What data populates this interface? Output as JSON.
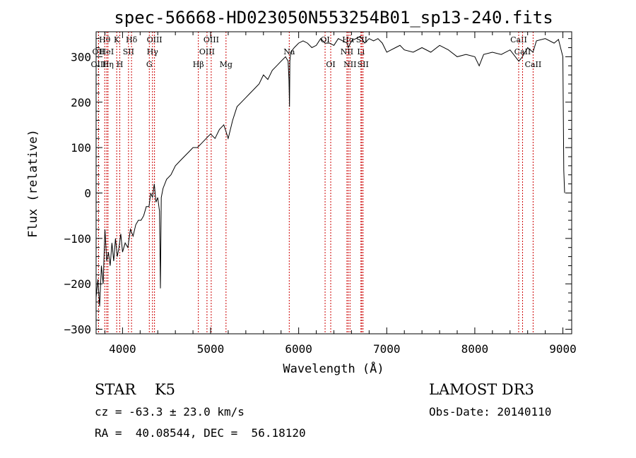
{
  "chart_data": {
    "type": "line",
    "title": "spec-56668-HD023050N553254B01_sp13-240.fits",
    "xlabel": "Wavelength (Å)",
    "ylabel": "Flux (relative)",
    "xlim": [
      3700,
      9100
    ],
    "ylim": [
      -310,
      355
    ],
    "xticks": [
      4000,
      5000,
      6000,
      7000,
      8000,
      9000
    ],
    "yticks": [
      -300,
      -200,
      -100,
      0,
      100,
      200,
      300
    ],
    "series": [
      {
        "name": "spectrum",
        "x": [
          3700,
          3720,
          3740,
          3760,
          3780,
          3800,
          3820,
          3840,
          3860,
          3880,
          3900,
          3920,
          3940,
          3960,
          3980,
          4000,
          4030,
          4060,
          4090,
          4120,
          4150,
          4180,
          4210,
          4240,
          4270,
          4300,
          4320,
          4340,
          4360,
          4380,
          4400,
          4420,
          4430,
          4440,
          4460,
          4500,
          4550,
          4600,
          4650,
          4700,
          4750,
          4800,
          4850,
          4900,
          4950,
          5000,
          5050,
          5100,
          5150,
          5200,
          5250,
          5300,
          5350,
          5400,
          5450,
          5500,
          5550,
          5600,
          5650,
          5700,
          5750,
          5800,
          5850,
          5880,
          5890,
          5896,
          5900,
          5910,
          5950,
          6000,
          6050,
          6100,
          6150,
          6200,
          6250,
          6300,
          6350,
          6400,
          6450,
          6500,
          6550,
          6563,
          6600,
          6650,
          6700,
          6750,
          6800,
          6850,
          6900,
          6950,
          7000,
          7050,
          7100,
          7150,
          7200,
          7300,
          7400,
          7500,
          7600,
          7700,
          7800,
          7900,
          8000,
          8050,
          8100,
          8200,
          8300,
          8400,
          8500,
          8540,
          8600,
          8660,
          8700,
          8800,
          8900,
          8950,
          9000,
          9010,
          9020
        ],
        "y": [
          -230,
          -190,
          -250,
          -160,
          -200,
          -80,
          -150,
          -130,
          -160,
          -110,
          -150,
          -100,
          -140,
          -120,
          -90,
          -130,
          -110,
          -120,
          -80,
          -95,
          -70,
          -60,
          -60,
          -50,
          -30,
          -30,
          0,
          -10,
          20,
          -20,
          -10,
          -40,
          -210,
          -10,
          10,
          30,
          40,
          60,
          70,
          80,
          90,
          100,
          100,
          110,
          120,
          130,
          120,
          140,
          150,
          120,
          160,
          190,
          200,
          210,
          220,
          230,
          240,
          260,
          250,
          270,
          280,
          290,
          300,
          290,
          250,
          190,
          290,
          310,
          320,
          330,
          335,
          330,
          320,
          325,
          340,
          330,
          330,
          325,
          340,
          335,
          330,
          320,
          335,
          340,
          345,
          330,
          340,
          335,
          340,
          330,
          310,
          315,
          320,
          325,
          315,
          310,
          320,
          310,
          325,
          315,
          300,
          305,
          300,
          280,
          305,
          310,
          305,
          315,
          290,
          300,
          320,
          310,
          335,
          340,
          330,
          338,
          300,
          50,
          0
        ]
      }
    ],
    "line_markers": [
      {
        "label": "Hθ",
        "x": 3798,
        "row": 1
      },
      {
        "label": "OII",
        "x": 3727,
        "row": 2
      },
      {
        "label": "HeI",
        "x": 3820,
        "row": 2
      },
      {
        "label": "OIII",
        "x": 3728,
        "row": 3
      },
      {
        "label": "Hη",
        "x": 3835,
        "row": 3
      },
      {
        "label": "K",
        "x": 3934,
        "row": 1
      },
      {
        "label": "SII",
        "x": 4068,
        "row": 2
      },
      {
        "label": "H",
        "x": 3969,
        "row": 3
      },
      {
        "label": "Hδ",
        "x": 4102,
        "row": 1
      },
      {
        "label": "OIII",
        "x": 4363,
        "row": 1
      },
      {
        "label": "Hγ",
        "x": 4340,
        "row": 2
      },
      {
        "label": "G",
        "x": 4304,
        "row": 3
      },
      {
        "label": "Hβ",
        "x": 4861,
        "row": 3
      },
      {
        "label": "OIII",
        "x": 5007,
        "row": 1
      },
      {
        "label": "OIII",
        "x": 4959,
        "row": 2
      },
      {
        "label": "Mg",
        "x": 5175,
        "row": 3
      },
      {
        "label": "Na",
        "x": 5893,
        "row": 2
      },
      {
        "label": "OI",
        "x": 6300,
        "row": 1
      },
      {
        "label": "OI",
        "x": 6364,
        "row": 3
      },
      {
        "label": "Hα",
        "x": 6563,
        "row": 1
      },
      {
        "label": "NII",
        "x": 6548,
        "row": 2
      },
      {
        "label": "NII",
        "x": 6583,
        "row": 3
      },
      {
        "label": "SII",
        "x": 6716,
        "row": 1
      },
      {
        "label": "Li",
        "x": 6707,
        "row": 2
      },
      {
        "label": "SII",
        "x": 6731,
        "row": 3
      },
      {
        "label": "CaII",
        "x": 8498,
        "row": 1
      },
      {
        "label": "CaII",
        "x": 8542,
        "row": 2
      },
      {
        "label": "CaII",
        "x": 8662,
        "row": 3
      }
    ]
  },
  "info": {
    "object_class": "STAR",
    "subclass": "K5",
    "survey": "LAMOST DR3",
    "redshift": "cz = -63.3 ± 23.0 km/s",
    "obs_date": "Obs-Date: 20140110",
    "coords": "RA =  40.08544, DEC =  56.18120"
  },
  "colors": {
    "spectrum": "#000000",
    "marker_line": "#cc0000"
  }
}
